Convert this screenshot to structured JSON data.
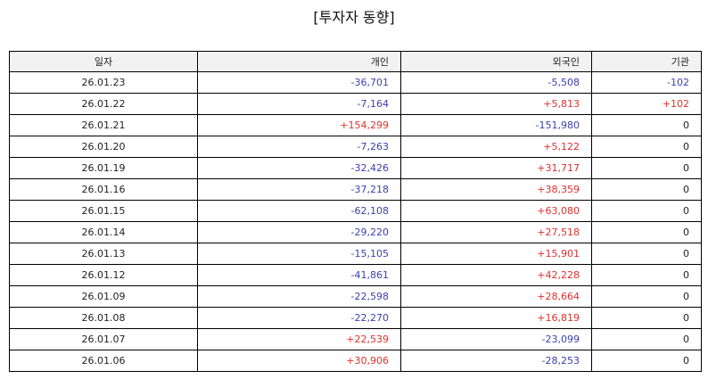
{
  "title": "[투자자 동향]",
  "headers": [
    "일자",
    "개인",
    "외국인",
    "기관"
  ],
  "rows": [
    [
      "26.01.23",
      "-36,701",
      "-5,508",
      "-102"
    ],
    [
      "26.01.22",
      "-7,164",
      "+5,813",
      "+102"
    ],
    [
      "26.01.21",
      "+154,299",
      "-151,980",
      "0"
    ],
    [
      "26.01.20",
      "-7,263",
      "+5,122",
      "0"
    ],
    [
      "26.01.19",
      "-32,426",
      "+31,717",
      "0"
    ],
    [
      "26.01.16",
      "-37,218",
      "+38,359",
      "0"
    ],
    [
      "26.01.15",
      "-62,108",
      "+63,080",
      "0"
    ],
    [
      "26.01.14",
      "-29,220",
      "+27,518",
      "0"
    ],
    [
      "26.01.13",
      "-15,105",
      "+15,901",
      "0"
    ],
    [
      "26.01.12",
      "-41,861",
      "+42,228",
      "0"
    ],
    [
      "26.01.09",
      "-22,598",
      "+28,664",
      "0"
    ],
    [
      "26.01.08",
      "-22,270",
      "+16,819",
      "0"
    ],
    [
      "26.01.07",
      "+22,539",
      "-23,099",
      "0"
    ],
    [
      "26.01.06",
      "+30,906",
      "-28,253",
      "0"
    ]
  ],
  "colors": {
    "negative": "#3a3fb0",
    "positive": "#e0302a",
    "zero": "#222222"
  }
}
